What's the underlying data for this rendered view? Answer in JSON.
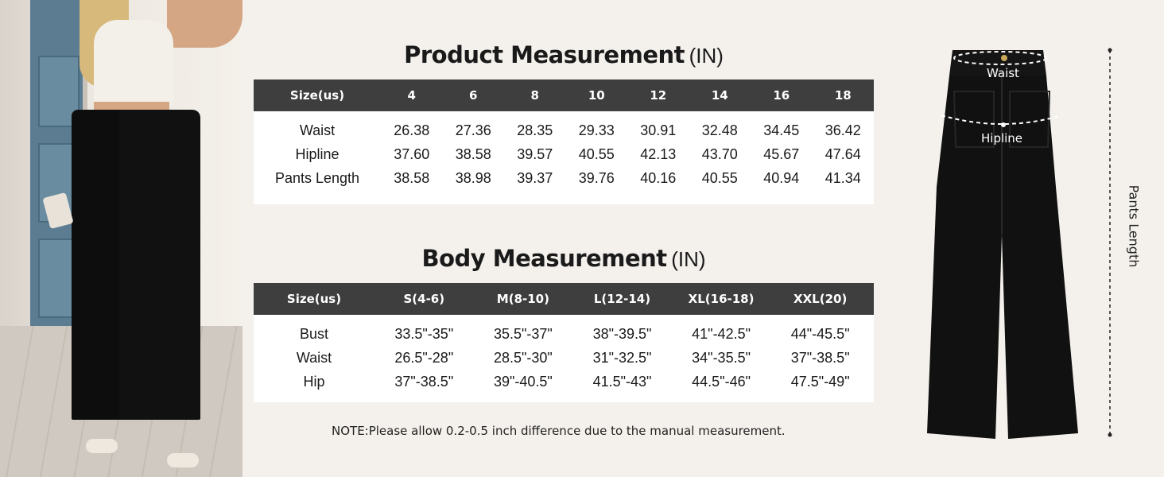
{
  "product": {
    "title": "Product Measurement",
    "unit": "(IN)",
    "header_label": "Size(us)",
    "sizes": [
      "4",
      "6",
      "8",
      "10",
      "12",
      "14",
      "16",
      "18"
    ],
    "rows": [
      {
        "label": "Waist",
        "values": [
          "26.38",
          "27.36",
          "28.35",
          "29.33",
          "30.91",
          "32.48",
          "34.45",
          "36.42"
        ]
      },
      {
        "label": "Hipline",
        "values": [
          "37.60",
          "38.58",
          "39.57",
          "40.55",
          "42.13",
          "43.70",
          "45.67",
          "47.64"
        ]
      },
      {
        "label": "Pants Length",
        "values": [
          "38.58",
          "38.98",
          "39.37",
          "39.76",
          "40.16",
          "40.55",
          "40.94",
          "41.34"
        ]
      }
    ]
  },
  "body": {
    "title": "Body Measurement",
    "unit": "(IN)",
    "header_label": "Size(us)",
    "sizes": [
      "S(4-6)",
      "M(8-10)",
      "L(12-14)",
      "XL(16-18)",
      "XXL(20)"
    ],
    "rows": [
      {
        "label": "Bust",
        "values": [
          "33.5\"-35\"",
          "35.5\"-37\"",
          "38\"-39.5\"",
          "41\"-42.5\"",
          "44\"-45.5\""
        ]
      },
      {
        "label": "Waist",
        "values": [
          "26.5\"-28\"",
          "28.5\"-30\"",
          "31\"-32.5\"",
          "34\"-35.5\"",
          "37\"-38.5\""
        ]
      },
      {
        "label": "Hip",
        "values": [
          "37\"-38.5\"",
          "39\"-40.5\"",
          "41.5\"-43\"",
          "44.5\"-46\"",
          "47.5\"-49\""
        ]
      }
    ]
  },
  "note": "NOTE:Please allow 0.2-0.5 inch difference due to the manual measurement.",
  "diagram": {
    "waist_label": "Waist",
    "hipline_label": "Hipline",
    "length_label": "Pants Length"
  },
  "colors": {
    "header_bg": "#3e3e3e",
    "page_bg": "#f4f1ec",
    "pants": "#111111"
  }
}
